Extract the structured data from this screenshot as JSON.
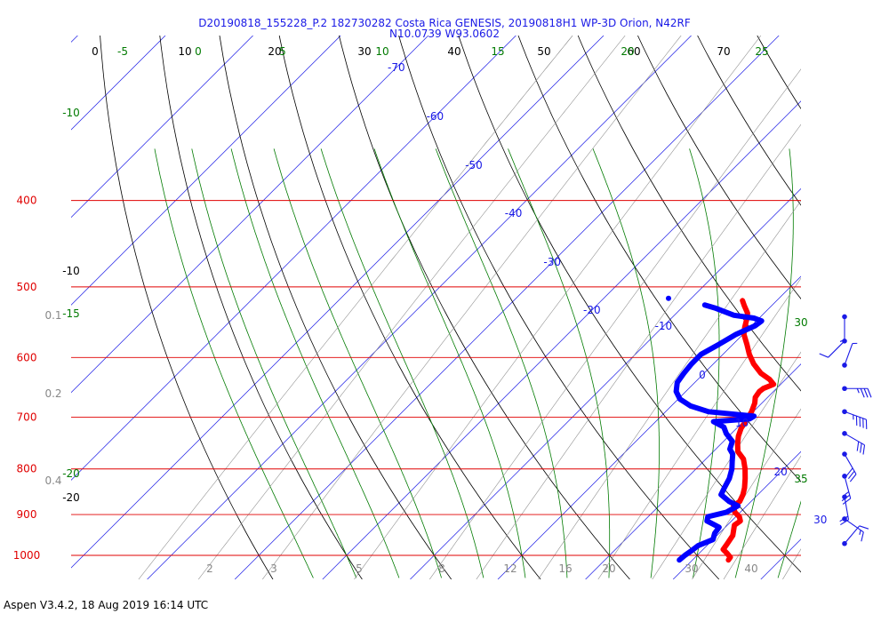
{
  "header": {
    "title_line1": "D20190818_155228_P.2 182730282 Costa Rica GENESIS, 20190818H1 WP-3D Orion, N42RF",
    "title_line2": "N10.0739 W93.0602"
  },
  "footer": {
    "text": "Aspen V3.4.2, 18 Aug 2019  16:14 UTC"
  },
  "colors": {
    "isobar": "#e00000",
    "isotherm": "#1a1ae6",
    "dry_adiabat": "#000000",
    "moist_adiabat": "#007a00",
    "mixing_ratio": "#888888",
    "temperature": "#ff0000",
    "dewpoint": "#0000ff",
    "barbs": "#1a1ae6"
  },
  "chart_data": {
    "type": "skew-t log-p sounding",
    "y_axis": {
      "label": "",
      "scale": "log",
      "range_hpa": [
        1030,
        370
      ],
      "isobar_labels": [
        400,
        500,
        600,
        700,
        800,
        900,
        1000
      ]
    },
    "x_axis": {
      "label": "",
      "range_c": [
        -30,
        40
      ],
      "isotherm_labels": [
        -70,
        -60,
        -50,
        -40,
        -30,
        -20,
        -10,
        0,
        10,
        20,
        30
      ]
    },
    "dry_adiabat_labels": [
      0,
      10,
      20,
      30,
      40,
      50,
      60,
      70
    ],
    "moist_adiabat_labels": [
      -5,
      0,
      5,
      10,
      15,
      20,
      25
    ],
    "moist_adiabat_side_labels": [
      -10,
      -15,
      -20,
      30,
      35
    ],
    "mixing_ratio_bottom_labels": [
      2,
      3,
      5,
      8,
      12,
      16,
      20,
      30,
      40
    ],
    "mixing_ratio_side_labels": [
      0.1,
      0.2,
      0.4
    ],
    "dry_adiabat_side_labels": [
      -10,
      -20
    ],
    "temperature": [
      {
        "p": 1012,
        "t": 24.1
      },
      {
        "p": 1005,
        "t": 24.0
      },
      {
        "p": 995,
        "t": 23.2
      },
      {
        "p": 985,
        "t": 22.3
      },
      {
        "p": 970,
        "t": 22.1
      },
      {
        "p": 950,
        "t": 21.8
      },
      {
        "p": 925,
        "t": 20.8
      },
      {
        "p": 915,
        "t": 21.0
      },
      {
        "p": 905,
        "t": 20.4
      },
      {
        "p": 895,
        "t": 19.4
      },
      {
        "p": 880,
        "t": 18.5
      },
      {
        "p": 870,
        "t": 18.7
      },
      {
        "p": 855,
        "t": 18.3
      },
      {
        "p": 840,
        "t": 17.7
      },
      {
        "p": 820,
        "t": 16.7
      },
      {
        "p": 800,
        "t": 15.6
      },
      {
        "p": 780,
        "t": 14.3
      },
      {
        "p": 765,
        "t": 12.8
      },
      {
        "p": 750,
        "t": 11.9
      },
      {
        "p": 735,
        "t": 11.1
      },
      {
        "p": 720,
        "t": 10.5
      },
      {
        "p": 705,
        "t": 10.2
      },
      {
        "p": 690,
        "t": 9.8
      },
      {
        "p": 675,
        "t": 9.2
      },
      {
        "p": 665,
        "t": 8.6
      },
      {
        "p": 655,
        "t": 8.4
      },
      {
        "p": 650,
        "t": 8.5
      },
      {
        "p": 643,
        "t": 9.2
      },
      {
        "p": 635,
        "t": 8.2
      },
      {
        "p": 625,
        "t": 6.5
      },
      {
        "p": 610,
        "t": 4.6
      },
      {
        "p": 595,
        "t": 3.0
      },
      {
        "p": 580,
        "t": 1.6
      },
      {
        "p": 565,
        "t": 0.1
      },
      {
        "p": 555,
        "t": -0.6
      },
      {
        "p": 545,
        "t": -1.2
      },
      {
        "p": 535,
        "t": -1.9
      },
      {
        "p": 525,
        "t": -3.1
      },
      {
        "p": 518,
        "t": -3.9
      }
    ],
    "dewpoint": [
      {
        "p": 1012,
        "t": 18.5
      },
      {
        "p": 1000,
        "t": 18.6
      },
      {
        "p": 990,
        "t": 18.8
      },
      {
        "p": 975,
        "t": 19.0
      },
      {
        "p": 960,
        "t": 20.0
      },
      {
        "p": 945,
        "t": 19.5
      },
      {
        "p": 930,
        "t": 19.3
      },
      {
        "p": 915,
        "t": 17.2
      },
      {
        "p": 905,
        "t": 16.8
      },
      {
        "p": 895,
        "t": 18.4
      },
      {
        "p": 880,
        "t": 19.0
      },
      {
        "p": 870,
        "t": 17.5
      },
      {
        "p": 855,
        "t": 15.8
      },
      {
        "p": 840,
        "t": 15.4
      },
      {
        "p": 820,
        "t": 14.9
      },
      {
        "p": 800,
        "t": 14.1
      },
      {
        "p": 785,
        "t": 13.3
      },
      {
        "p": 770,
        "t": 12.5
      },
      {
        "p": 760,
        "t": 11.6
      },
      {
        "p": 745,
        "t": 11.0
      },
      {
        "p": 730,
        "t": 9.4
      },
      {
        "p": 718,
        "t": 8.4
      },
      {
        "p": 708,
        "t": 6.6
      },
      {
        "p": 703,
        "t": 10.4
      },
      {
        "p": 698,
        "t": 10.6
      },
      {
        "p": 690,
        "t": 4.9
      },
      {
        "p": 680,
        "t": 2.2
      },
      {
        "p": 668,
        "t": 0.2
      },
      {
        "p": 655,
        "t": -1.1
      },
      {
        "p": 640,
        "t": -2.0
      },
      {
        "p": 625,
        "t": -2.3
      },
      {
        "p": 610,
        "t": -2.5
      },
      {
        "p": 595,
        "t": -2.5
      },
      {
        "p": 580,
        "t": -1.6
      },
      {
        "p": 565,
        "t": -0.8
      },
      {
        "p": 553,
        "t": 0.4
      },
      {
        "p": 546,
        "t": 0.6
      },
      {
        "p": 542,
        "t": -0.6
      },
      {
        "p": 538,
        "t": -3.2
      },
      {
        "p": 534,
        "t": -4.4
      },
      {
        "p": 528,
        "t": -6.2
      },
      {
        "p": 524,
        "t": -7.7
      }
    ],
    "dewpoint_isolated_point": {
      "p": 515,
      "t": -12.6
    },
    "wind_barbs": [
      {
        "p": 540,
        "dir": 180,
        "spd": 5
      },
      {
        "p": 575,
        "dir": 225,
        "spd": 10
      },
      {
        "p": 612,
        "dir": 20,
        "spd": 5
      },
      {
        "p": 650,
        "dir": 90,
        "spd": 35
      },
      {
        "p": 690,
        "dir": 110,
        "spd": 45
      },
      {
        "p": 730,
        "dir": 120,
        "spd": 30
      },
      {
        "p": 770,
        "dir": 150,
        "spd": 30
      },
      {
        "p": 815,
        "dir": 165,
        "spd": 25
      },
      {
        "p": 860,
        "dir": 170,
        "spd": 20
      },
      {
        "p": 910,
        "dir": 125,
        "spd": 15
      },
      {
        "p": 970,
        "dir": 40,
        "spd": 10
      }
    ]
  }
}
